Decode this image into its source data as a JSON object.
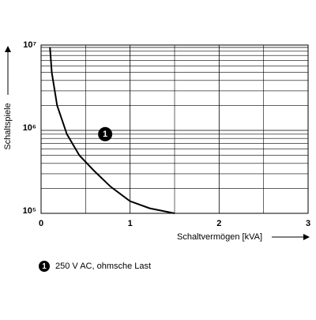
{
  "chart_data": {
    "type": "line",
    "x_label": "Schaltvermögen [kVA]",
    "y_label": "Schaltspiele",
    "x": [
      0.1,
      0.12,
      0.18,
      0.29,
      0.43,
      0.59,
      0.78,
      1.0,
      1.22,
      1.5
    ],
    "series": [
      {
        "name": "250 V AC, ohmsche Last",
        "marker": "1",
        "color": "#000000",
        "values": [
          10000000,
          5000000,
          2000000,
          900000,
          500000,
          330000,
          210000,
          140000,
          115000,
          100000
        ]
      }
    ],
    "xlim": [
      0,
      3
    ],
    "xticks": [
      0,
      1,
      2,
      3
    ],
    "x_minor_ticks": [
      0.5,
      1.5,
      2.5
    ],
    "ylim": [
      100000,
      10000000
    ],
    "y_log": true,
    "yticks": [
      {
        "value": 100000,
        "label": "10⁵"
      },
      {
        "value": 1000000,
        "label": "10⁶"
      },
      {
        "value": 10000000,
        "label": "10⁷"
      }
    ],
    "minor_yticks": [
      200000,
      300000,
      400000,
      500000,
      600000,
      700000,
      800000,
      900000,
      2000000,
      3000000,
      4000000,
      5000000,
      6000000,
      7000000,
      8000000,
      9000000
    ],
    "annotation": {
      "label": "1",
      "x": 0.72,
      "y": 900000
    },
    "grid": true
  }
}
